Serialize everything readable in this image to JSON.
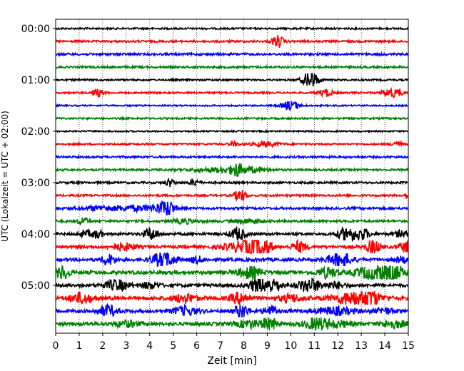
{
  "chart_data": {
    "type": "line",
    "title": "",
    "xlabel": "Zeit  [min]",
    "ylabel": "UTC (Lokalzeit = UTC + 02:00)",
    "xlim": [
      0,
      15
    ],
    "x_ticks": [
      0,
      1,
      2,
      3,
      4,
      5,
      6,
      7,
      8,
      9,
      10,
      11,
      12,
      13,
      14,
      15
    ],
    "y_tick_labels": [
      "00:00",
      "01:00",
      "02:00",
      "03:00",
      "04:00",
      "05:00"
    ],
    "rows_per_hour": 4,
    "row_count": 24,
    "row_colors": [
      "#000000",
      "#ff0000",
      "#0000ff",
      "#008000"
    ],
    "grid": "vertical dotted",
    "traces": [
      {
        "row": 0,
        "noise": 1.2,
        "events": []
      },
      {
        "row": 1,
        "noise": 1.4,
        "events": [
          [
            9.45,
            8,
            0.25
          ]
        ]
      },
      {
        "row": 2,
        "noise": 1.6,
        "events": []
      },
      {
        "row": 3,
        "noise": 1.4,
        "events": []
      },
      {
        "row": 4,
        "noise": 1.2,
        "events": [
          [
            10.7,
            4,
            0.3
          ],
          [
            10.9,
            9,
            0.3
          ]
        ]
      },
      {
        "row": 5,
        "noise": 1.2,
        "events": [
          [
            1.8,
            5,
            0.25
          ],
          [
            11.5,
            5,
            0.3
          ],
          [
            14.2,
            6,
            0.3
          ],
          [
            14.6,
            4,
            0.2
          ]
        ]
      },
      {
        "row": 6,
        "noise": 1.0,
        "events": [
          [
            10.0,
            6,
            0.4
          ]
        ]
      },
      {
        "row": 7,
        "noise": 1.2,
        "events": []
      },
      {
        "row": 8,
        "noise": 1.0,
        "events": []
      },
      {
        "row": 9,
        "noise": 1.2,
        "events": [
          [
            7.6,
            3,
            0.2
          ],
          [
            8.9,
            3,
            0.6
          ],
          [
            14.5,
            4,
            0.2
          ]
        ]
      },
      {
        "row": 10,
        "noise": 1.4,
        "events": []
      },
      {
        "row": 11,
        "noise": 1.4,
        "events": [
          [
            7.0,
            3,
            1.2
          ],
          [
            7.7,
            8,
            0.2
          ],
          [
            8.2,
            3,
            0.8
          ]
        ]
      },
      {
        "row": 12,
        "noise": 1.4,
        "events": [
          [
            4.85,
            5,
            0.2
          ],
          [
            5.9,
            4,
            0.2
          ]
        ]
      },
      {
        "row": 13,
        "noise": 1.4,
        "events": [
          [
            7.85,
            8,
            0.25
          ],
          [
            15.0,
            4,
            0.2
          ]
        ]
      },
      {
        "row": 14,
        "noise": 1.6,
        "events": [
          [
            2.0,
            3,
            1.0
          ],
          [
            3.5,
            3,
            0.6
          ],
          [
            4.5,
            5,
            0.5
          ],
          [
            4.75,
            9,
            0.3
          ]
        ]
      },
      {
        "row": 15,
        "noise": 1.6,
        "events": [
          [
            1.15,
            6,
            0.2
          ],
          [
            5.5,
            3,
            0.5
          ],
          [
            8.2,
            3,
            0.6
          ]
        ]
      },
      {
        "row": 16,
        "noise": 1.8,
        "events": [
          [
            1.3,
            4,
            0.3
          ],
          [
            1.8,
            5,
            0.2
          ],
          [
            4.05,
            8,
            0.3
          ],
          [
            7.75,
            9,
            0.3
          ],
          [
            12.4,
            9,
            0.4
          ],
          [
            13.05,
            7,
            0.3
          ],
          [
            14.7,
            4,
            0.3
          ]
        ]
      },
      {
        "row": 17,
        "noise": 2.0,
        "events": [
          [
            2.9,
            5,
            0.5
          ],
          [
            8.0,
            7,
            0.8
          ],
          [
            8.35,
            14,
            0.3
          ],
          [
            8.9,
            9,
            0.3
          ],
          [
            10.35,
            8,
            0.3
          ],
          [
            13.5,
            10,
            0.3
          ],
          [
            14.9,
            7,
            0.3
          ]
        ]
      },
      {
        "row": 18,
        "noise": 2.2,
        "events": [
          [
            2.25,
            7,
            0.3
          ],
          [
            4.45,
            8,
            0.4
          ],
          [
            4.8,
            5,
            0.4
          ],
          [
            6.0,
            4,
            0.3
          ],
          [
            12.1,
            10,
            0.5
          ],
          [
            14.7,
            4,
            0.3
          ]
        ]
      },
      {
        "row": 19,
        "noise": 2.4,
        "events": [
          [
            0.3,
            9,
            0.3
          ],
          [
            8.25,
            8,
            0.5
          ],
          [
            11.55,
            7,
            0.4
          ],
          [
            13.5,
            8,
            0.8
          ],
          [
            14.2,
            11,
            0.6
          ]
        ]
      },
      {
        "row": 20,
        "noise": 2.2,
        "events": [
          [
            2.6,
            7,
            0.5
          ],
          [
            4.0,
            4,
            0.4
          ],
          [
            8.6,
            9,
            0.4
          ],
          [
            9.25,
            11,
            0.3
          ],
          [
            10.8,
            9,
            0.5
          ],
          [
            11.9,
            4,
            0.4
          ]
        ]
      },
      {
        "row": 21,
        "noise": 2.4,
        "events": [
          [
            1.1,
            7,
            0.5
          ],
          [
            5.5,
            6,
            0.5
          ],
          [
            7.85,
            8,
            0.4
          ],
          [
            10.0,
            5,
            0.5
          ],
          [
            12.8,
            9,
            1.0
          ],
          [
            13.2,
            12,
            0.4
          ]
        ]
      },
      {
        "row": 22,
        "noise": 2.2,
        "events": [
          [
            2.2,
            8,
            0.4
          ],
          [
            5.5,
            6,
            0.5
          ],
          [
            7.9,
            9,
            0.3
          ],
          [
            9.15,
            7,
            0.3
          ],
          [
            11.9,
            5,
            0.8
          ],
          [
            14.0,
            4,
            0.4
          ]
        ]
      },
      {
        "row": 23,
        "noise": 2.4,
        "events": [
          [
            3.0,
            4,
            0.5
          ],
          [
            8.2,
            5,
            0.5
          ],
          [
            9.1,
            9,
            0.3
          ],
          [
            11.1,
            8,
            0.5
          ],
          [
            12.0,
            4,
            0.6
          ],
          [
            14.4,
            5,
            0.5
          ]
        ]
      }
    ]
  }
}
